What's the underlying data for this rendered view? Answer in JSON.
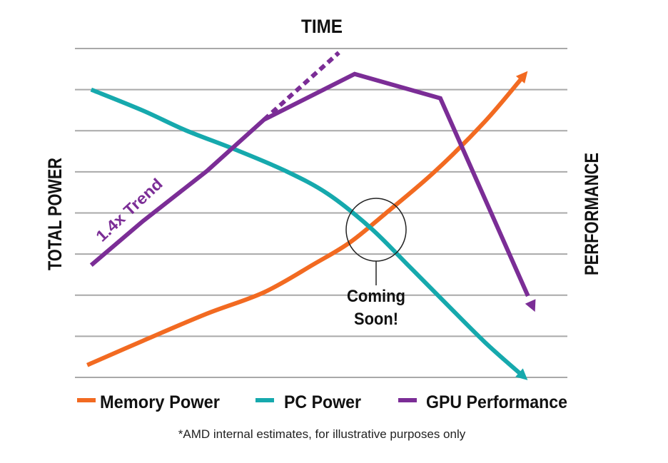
{
  "chart_data": {
    "type": "line",
    "title": "TIME",
    "xlabel": "TIME",
    "ylabel_left": "TOTAL POWER",
    "ylabel_right": "PERFORMANCE",
    "xlim": [
      0,
      10
    ],
    "ylim": [
      0,
      8
    ],
    "grid": true,
    "legend_position": "bottom",
    "series": [
      {
        "name": "Memory Power",
        "color": "#f26a21",
        "x": [
          0.25,
          1.38,
          2.68,
          3.84,
          4.86,
          5.58,
          6.3,
          7.32,
          8.33,
          9.13
        ],
        "y": [
          0.3,
          0.89,
          1.55,
          2.07,
          2.76,
          3.28,
          3.98,
          5.02,
          6.23,
          7.36
        ]
      },
      {
        "name": "PC Power",
        "color": "#16a9ad",
        "x": [
          0.33,
          1.38,
          2.25,
          3.26,
          4.28,
          5.14,
          6.01,
          6.74,
          7.46,
          8.33,
          9.13
        ],
        "y": [
          7.0,
          6.49,
          6.01,
          5.54,
          5.02,
          4.46,
          3.63,
          2.76,
          1.89,
          0.85,
          0.0
        ]
      },
      {
        "name": "GPU Performance",
        "color": "#7b2d96",
        "x": [
          0.33,
          1.38,
          2.68,
          3.84,
          5.68,
          7.42,
          9.2
        ],
        "y": [
          2.73,
          3.8,
          5.02,
          6.27,
          7.38,
          6.79,
          1.98
        ]
      }
    ],
    "trend_line": {
      "label": "1.4x Trend",
      "color": "#7b2d96",
      "x": [
        3.84,
        5.36
      ],
      "y": [
        6.27,
        7.9
      ]
    },
    "annotation": {
      "text_line1": "Coming",
      "text_line2": "Soon!",
      "x": 6.0,
      "y": 3.6
    },
    "footnote": "*AMD internal estimates, for illustrative purposes only"
  }
}
